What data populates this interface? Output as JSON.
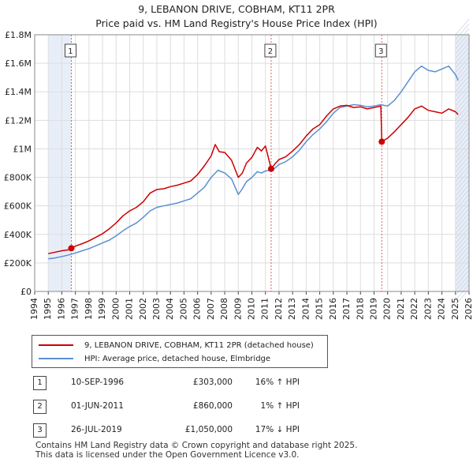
{
  "title_line1": "9, LEBANON DRIVE, COBHAM, KT11 2PR",
  "title_line2": "Price paid vs. HM Land Registry's House Price Index (HPI)",
  "legend": {
    "property_label": "9, LEBANON DRIVE, COBHAM, KT11 2PR (detached house)",
    "hpi_label": "HPI: Average price, detached house, Elmbridge"
  },
  "colors": {
    "property": "#cc0000",
    "hpi": "#5b8fd0",
    "shade": "#e8eef8",
    "marker": "#cc0000"
  },
  "sales": [
    {
      "num": "1",
      "date": "10-SEP-1996",
      "price": "£303,000",
      "hpi": "16% ↑ HPI"
    },
    {
      "num": "2",
      "date": "01-JUN-2011",
      "price": "£860,000",
      "hpi": "1% ↑ HPI"
    },
    {
      "num": "3",
      "date": "26-JUL-2019",
      "price": "£1,050,000",
      "hpi": "17% ↓ HPI"
    }
  ],
  "footer_line1": "Contains HM Land Registry data © Crown copyright and database right 2025.",
  "footer_line2": "This data is licensed under the Open Government Licence v3.0.",
  "chart_data": {
    "type": "line",
    "title": "Price paid vs. HM Land Registry's House Price Index (HPI)",
    "xlabel": "",
    "ylabel": "",
    "xlim": [
      1994,
      2026
    ],
    "ylim": [
      0,
      1800000
    ],
    "x_ticks": [
      1994,
      1995,
      1996,
      1997,
      1998,
      1999,
      2000,
      2001,
      2002,
      2003,
      2004,
      2005,
      2006,
      2007,
      2008,
      2009,
      2010,
      2011,
      2012,
      2013,
      2014,
      2015,
      2016,
      2017,
      2018,
      2019,
      2020,
      2021,
      2022,
      2023,
      2024,
      2025,
      2026
    ],
    "y_ticks": [
      {
        "value": 0,
        "label": "£0"
      },
      {
        "value": 200000,
        "label": "£200K"
      },
      {
        "value": 400000,
        "label": "£400K"
      },
      {
        "value": 600000,
        "label": "£600K"
      },
      {
        "value": 800000,
        "label": "£800K"
      },
      {
        "value": 1000000,
        "label": "£1M"
      },
      {
        "value": 1200000,
        "label": "£1.2M"
      },
      {
        "value": 1400000,
        "label": "£1.4M"
      },
      {
        "value": 1600000,
        "label": "£1.6M"
      },
      {
        "value": 1800000,
        "label": "£1.8M"
      }
    ],
    "grid": true,
    "shaded_periods": [
      [
        1995.0,
        1996.7
      ],
      [
        2025.0,
        2026.0
      ]
    ],
    "sale_markers": [
      {
        "label": "1",
        "x": 1996.7,
        "y": 303000
      },
      {
        "label": "2",
        "x": 2011.42,
        "y": 860000
      },
      {
        "label": "3",
        "x": 2019.57,
        "y": 1050000
      }
    ],
    "series": [
      {
        "name": "9, LEBANON DRIVE, COBHAM, KT11 2PR (detached house)",
        "x": [
          1995.0,
          1995.5,
          1996.0,
          1996.5,
          1996.7,
          1997.0,
          1997.5,
          1998.0,
          1998.5,
          1999.0,
          1999.5,
          2000.0,
          2000.5,
          2001.0,
          2001.5,
          2002.0,
          2002.5,
          2003.0,
          2003.5,
          2004.0,
          2004.5,
          2005.0,
          2005.5,
          2006.0,
          2006.5,
          2007.0,
          2007.3,
          2007.6,
          2008.0,
          2008.5,
          2009.0,
          2009.3,
          2009.6,
          2010.0,
          2010.4,
          2010.7,
          2011.0,
          2011.42,
          2011.7,
          2012.0,
          2012.5,
          2013.0,
          2013.5,
          2014.0,
          2014.5,
          2015.0,
          2015.5,
          2016.0,
          2016.5,
          2017.0,
          2017.5,
          2018.0,
          2018.5,
          2019.0,
          2019.5,
          2019.57,
          2020.0,
          2020.5,
          2021.0,
          2021.5,
          2022.0,
          2022.5,
          2023.0,
          2023.5,
          2024.0,
          2024.5,
          2025.0,
          2025.2
        ],
        "values": [
          265000,
          275000,
          285000,
          292000,
          303000,
          318000,
          335000,
          355000,
          380000,
          405000,
          440000,
          480000,
          530000,
          565000,
          590000,
          630000,
          690000,
          715000,
          720000,
          735000,
          745000,
          760000,
          775000,
          820000,
          880000,
          950000,
          1030000,
          980000,
          975000,
          920000,
          800000,
          830000,
          900000,
          940000,
          1010000,
          985000,
          1020000,
          860000,
          895000,
          925000,
          945000,
          985000,
          1030000,
          1090000,
          1140000,
          1170000,
          1230000,
          1280000,
          1300000,
          1305000,
          1290000,
          1295000,
          1280000,
          1290000,
          1300000,
          1050000,
          1075000,
          1120000,
          1170000,
          1220000,
          1280000,
          1300000,
          1270000,
          1260000,
          1250000,
          1280000,
          1260000,
          1240000
        ]
      },
      {
        "name": "HPI: Average price, detached house, Elmbridge",
        "x": [
          1995.0,
          1995.5,
          1996.0,
          1996.5,
          1997.0,
          1997.5,
          1998.0,
          1998.5,
          1999.0,
          1999.5,
          2000.0,
          2000.5,
          2001.0,
          2001.5,
          2002.0,
          2002.5,
          2003.0,
          2003.5,
          2004.0,
          2004.5,
          2005.0,
          2005.5,
          2006.0,
          2006.5,
          2007.0,
          2007.5,
          2008.0,
          2008.5,
          2009.0,
          2009.3,
          2009.6,
          2010.0,
          2010.4,
          2010.7,
          2011.0,
          2011.42,
          2011.7,
          2012.0,
          2012.5,
          2013.0,
          2013.5,
          2014.0,
          2014.5,
          2015.0,
          2015.5,
          2016.0,
          2016.5,
          2017.0,
          2017.5,
          2018.0,
          2018.5,
          2019.0,
          2019.5,
          2020.0,
          2020.5,
          2021.0,
          2021.5,
          2022.0,
          2022.5,
          2023.0,
          2023.5,
          2024.0,
          2024.5,
          2025.0,
          2025.2
        ],
        "values": [
          228000,
          235000,
          245000,
          256000,
          270000,
          285000,
          300000,
          320000,
          340000,
          360000,
          390000,
          425000,
          455000,
          480000,
          520000,
          565000,
          590000,
          600000,
          610000,
          620000,
          635000,
          650000,
          690000,
          730000,
          800000,
          850000,
          830000,
          790000,
          680000,
          720000,
          770000,
          800000,
          840000,
          830000,
          845000,
          850000,
          865000,
          890000,
          910000,
          945000,
          990000,
          1050000,
          1100000,
          1140000,
          1190000,
          1250000,
          1290000,
          1300000,
          1310000,
          1305000,
          1295000,
          1300000,
          1310000,
          1300000,
          1340000,
          1400000,
          1470000,
          1540000,
          1580000,
          1550000,
          1540000,
          1560000,
          1580000,
          1520000,
          1480000
        ]
      }
    ]
  }
}
